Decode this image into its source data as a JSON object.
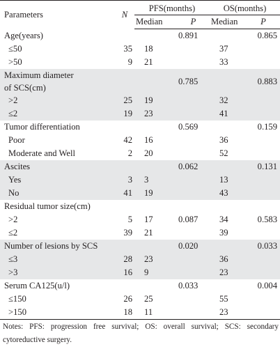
{
  "table": {
    "header": {
      "parameters": "Parameters",
      "n": "N",
      "pfs": "PFS(months)",
      "os": "OS(months)",
      "median": "Median",
      "p": "P"
    },
    "groups": [
      {
        "label_lines": [
          "Age(years)"
        ],
        "pfs_p": "0.891",
        "os_p": "0.865",
        "rows": [
          {
            "label": "≤50",
            "n": "35",
            "pfs_median": "18",
            "pfs_p": "",
            "os_median": "37",
            "os_p": ""
          },
          {
            "label": ">50",
            "n": "9",
            "pfs_median": "21",
            "pfs_p": "",
            "os_median": "33",
            "os_p": ""
          }
        ]
      },
      {
        "label_lines": [
          "Maximum diameter",
          "of SCS(cm)"
        ],
        "pfs_p": "0.785",
        "os_p": "0.883",
        "rows": [
          {
            "label": ">2",
            "n": "25",
            "pfs_median": "19",
            "pfs_p": "",
            "os_median": "32",
            "os_p": ""
          },
          {
            "label": "≤2",
            "n": "19",
            "pfs_median": "23",
            "pfs_p": "",
            "os_median": "41",
            "os_p": ""
          }
        ]
      },
      {
        "label_lines": [
          "Tumor differentiation"
        ],
        "pfs_p": "0.569",
        "os_p": "0.159",
        "rows": [
          {
            "label": "Poor",
            "n": "42",
            "pfs_median": "16",
            "pfs_p": "",
            "os_median": "36",
            "os_p": ""
          },
          {
            "label": "Moderate and Well",
            "n": "2",
            "pfs_median": "20",
            "pfs_p": "",
            "os_median": "52",
            "os_p": ""
          }
        ]
      },
      {
        "label_lines": [
          "Ascites"
        ],
        "pfs_p": "0.062",
        "os_p": "0.131",
        "rows": [
          {
            "label": "Yes",
            "n": "3",
            "pfs_median": "3",
            "pfs_p": "",
            "os_median": "13",
            "os_p": ""
          },
          {
            "label": "No",
            "n": "41",
            "pfs_median": "19",
            "pfs_p": "",
            "os_median": "43",
            "os_p": ""
          }
        ]
      },
      {
        "label_lines": [
          "Residual tumor size(cm)"
        ],
        "pfs_p": "",
        "os_p": "",
        "rows": [
          {
            "label": ">2",
            "n": "5",
            "pfs_median": "17",
            "pfs_p": "0.087",
            "os_median": "34",
            "os_p": "0.583"
          },
          {
            "label": "≤2",
            "n": "39",
            "pfs_median": "21",
            "pfs_p": "",
            "os_median": "39",
            "os_p": ""
          }
        ]
      },
      {
        "label_lines": [
          "Number of lesions by SCS"
        ],
        "pfs_p": "0.020",
        "os_p": "0.033",
        "rows": [
          {
            "label": "≤3",
            "n": "28",
            "pfs_median": "23",
            "pfs_p": "",
            "os_median": "36",
            "os_p": ""
          },
          {
            "label": ">3",
            "n": "16",
            "pfs_median": "9",
            "pfs_p": "",
            "os_median": "23",
            "os_p": ""
          }
        ]
      },
      {
        "label_lines": [
          "Serum CA125(u/l)"
        ],
        "pfs_p": "0.033",
        "os_p": "0.004",
        "rows": [
          {
            "label": "≤150",
            "n": "26",
            "pfs_median": "25",
            "pfs_p": "",
            "os_median": "55",
            "os_p": ""
          },
          {
            "label": ">150",
            "n": "18",
            "pfs_median": "11",
            "pfs_p": "",
            "os_median": "23",
            "os_p": ""
          }
        ]
      }
    ]
  },
  "notes": "Notes: PFS: progression free survival; OS: overall survival; SCS: secondary cytoreductive surgery."
}
